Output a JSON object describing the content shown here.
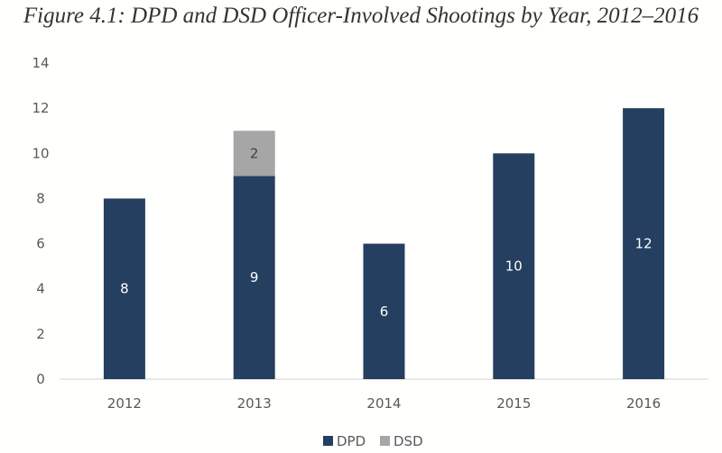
{
  "chart_data": {
    "type": "bar",
    "stacked": true,
    "title": "Figure 4.1: DPD and DSD Officer-Involved Shootings by Year, 2012–2016",
    "xlabel": "",
    "ylabel": "",
    "categories": [
      "2012",
      "2013",
      "2014",
      "2015",
      "2016"
    ],
    "series": [
      {
        "name": "DPD",
        "color": "#243f60",
        "values": [
          8,
          9,
          6,
          10,
          12
        ]
      },
      {
        "name": "DSD",
        "color": "#a6a6a6",
        "values": [
          0,
          2,
          0,
          0,
          0
        ]
      }
    ],
    "ylim": [
      0,
      14
    ],
    "yticks": [
      0,
      2,
      4,
      6,
      8,
      10,
      12,
      14
    ],
    "grid": false,
    "legend": "bottom"
  }
}
